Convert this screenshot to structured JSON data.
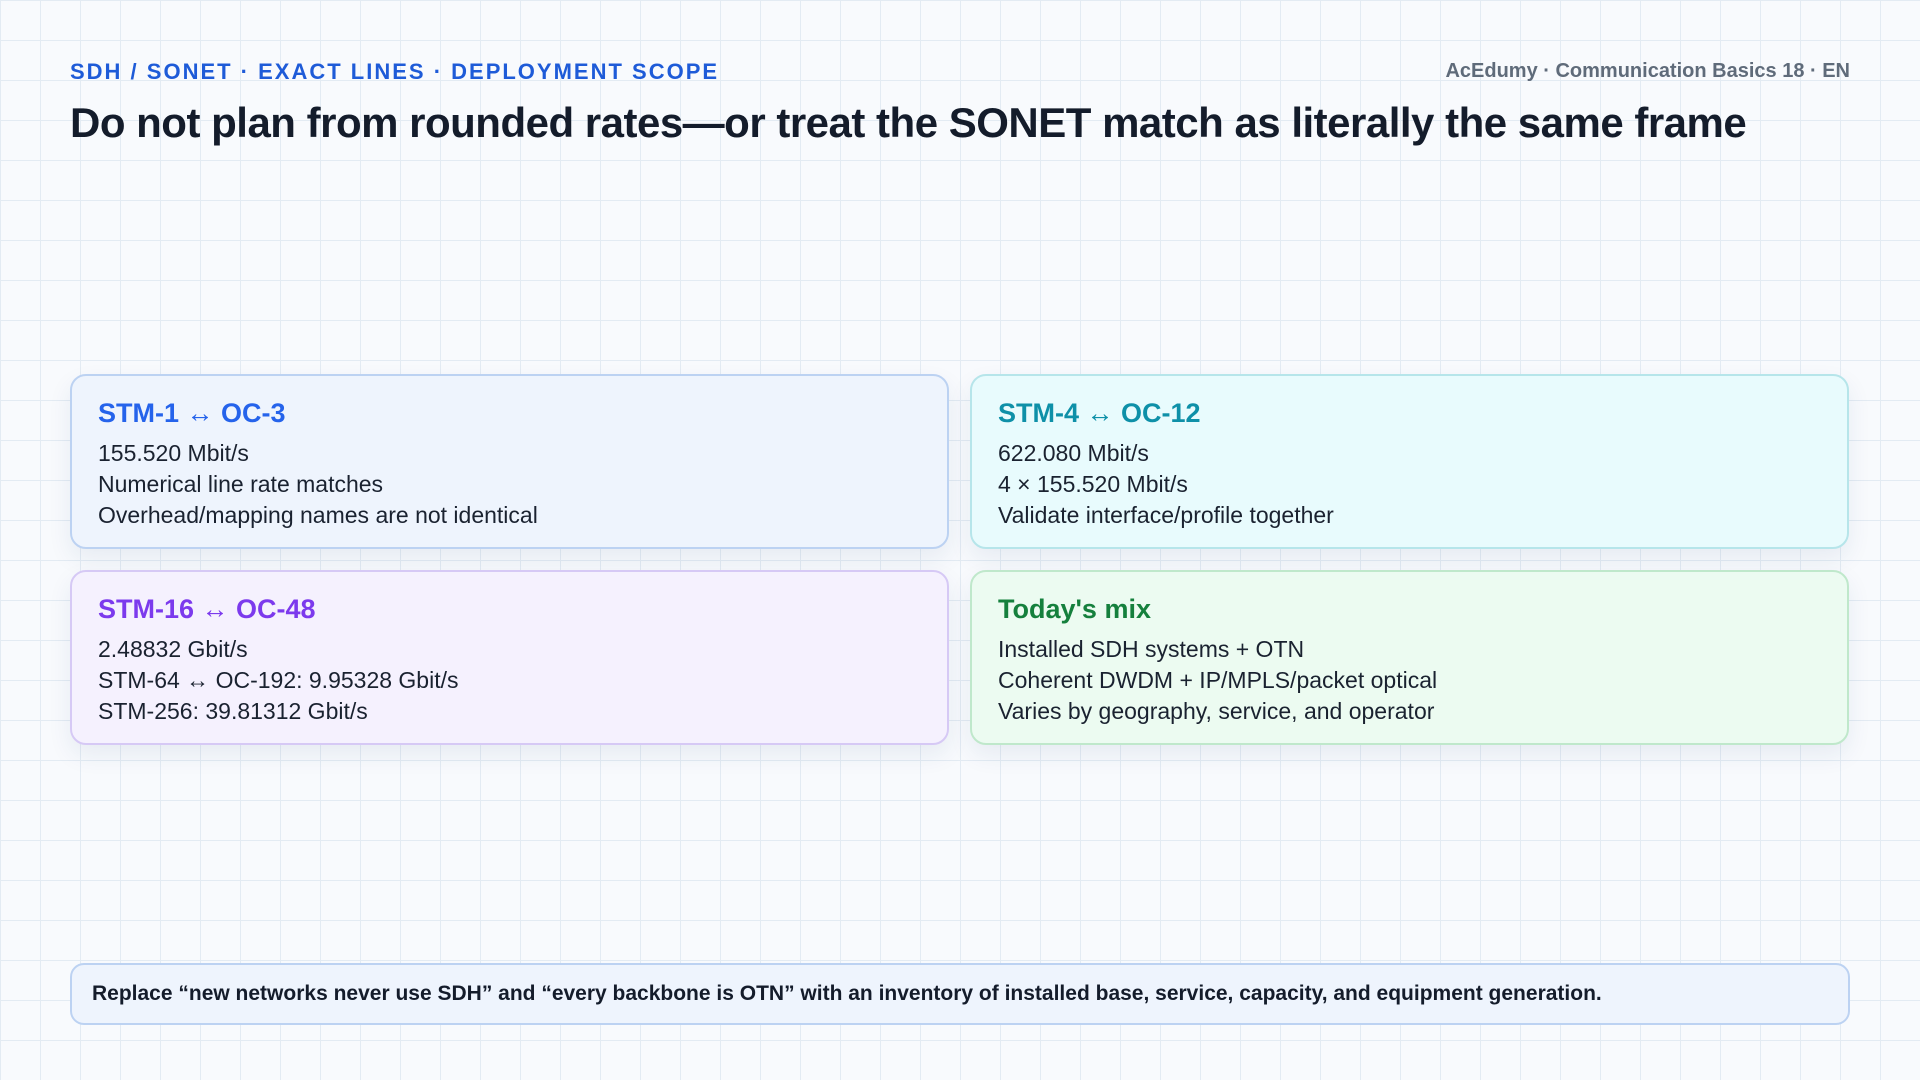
{
  "header": {
    "eyebrow": "SDH / SONET · EXACT LINES · DEPLOYMENT SCOPE",
    "meta": "AcEdumy · Communication Basics 18 · EN",
    "title": "Do not plan from rounded rates—or treat the SONET match as literally the same frame"
  },
  "cards": [
    {
      "title": "STM-1 ↔ OC-3",
      "lines": [
        "155.520 Mbit/s",
        "Numerical line rate matches",
        "Overhead/mapping names are not identical"
      ],
      "accent": "#2563eb"
    },
    {
      "title": "STM-4 ↔ OC-12",
      "lines": [
        "622.080 Mbit/s",
        "4 × 155.520 Mbit/s",
        "Validate interface/profile together"
      ],
      "accent": "#0e90a8"
    },
    {
      "title": "STM-16 ↔ OC-48",
      "lines": [
        "2.48832 Gbit/s",
        "STM-64 ↔ OC-192: 9.95328 Gbit/s",
        "STM-256: 39.81312 Gbit/s"
      ],
      "accent": "#7c3aed"
    },
    {
      "title": "Today's mix",
      "lines": [
        "Installed SDH systems + OTN",
        "Coherent DWDM + IP/MPLS/packet optical",
        "Varies by geography, service, and operator"
      ],
      "accent": "#15803d"
    }
  ],
  "footer": {
    "note": "Replace “new networks never use SDH” and “every backbone is OTN” with an inventory of installed base, service, capacity, and equipment generation."
  }
}
